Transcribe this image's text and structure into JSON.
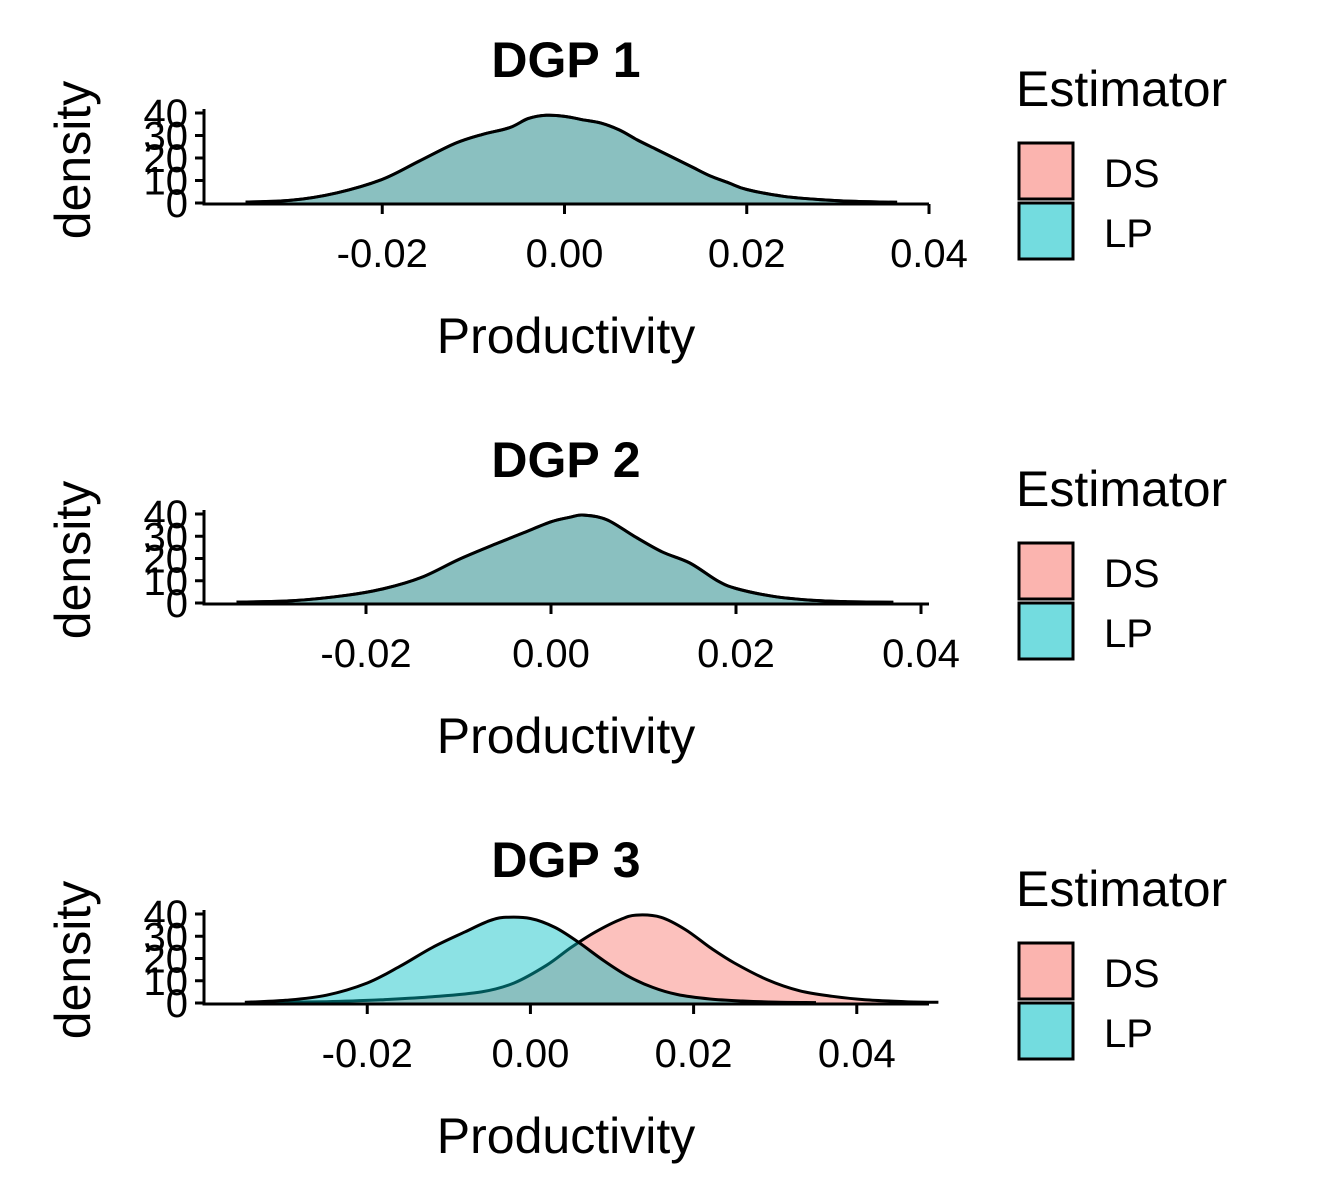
{
  "chart_data": [
    {
      "type": "area",
      "title": "DGP 1",
      "xlabel": "Productivity",
      "ylabel": "density",
      "xlim": [
        -0.04,
        0.04
      ],
      "ylim": [
        0,
        40
      ],
      "x_ticks": [
        -0.02,
        0.0,
        0.02,
        0.04
      ],
      "x_tick_labels": [
        "-0.02",
        "0.00",
        "0.02",
        "0.04"
      ],
      "y_ticks": [
        0,
        10,
        20,
        30,
        40
      ],
      "y_tick_labels": [
        "0",
        "10",
        "20",
        "30",
        "40"
      ],
      "grid": false,
      "legend": {
        "title": "Estimator",
        "position": "right",
        "entries": [
          "DS",
          "LP"
        ]
      },
      "series": [
        {
          "name": "DS",
          "color": "#F8766D",
          "x": [
            -0.035,
            -0.03,
            -0.025,
            -0.02,
            -0.016,
            -0.012,
            -0.009,
            -0.006,
            -0.004,
            -0.002,
            0.0,
            0.002,
            0.004,
            0.006,
            0.008,
            0.01,
            0.012,
            0.014,
            0.016,
            0.018,
            0.02,
            0.024,
            0.028,
            0.032,
            0.0365
          ],
          "y": [
            0.4,
            1.2,
            4.5,
            10.5,
            18.5,
            26.5,
            30.5,
            33.5,
            37.5,
            39.0,
            38.5,
            37.0,
            35.5,
            32.5,
            28.0,
            24.0,
            20.0,
            16.0,
            12.0,
            9.0,
            6.0,
            3.0,
            1.5,
            0.7,
            0.3
          ]
        },
        {
          "name": "LP",
          "color": "#00BFC4",
          "x": [
            -0.035,
            -0.03,
            -0.025,
            -0.02,
            -0.016,
            -0.012,
            -0.009,
            -0.006,
            -0.004,
            -0.002,
            0.0,
            0.002,
            0.004,
            0.006,
            0.008,
            0.01,
            0.012,
            0.014,
            0.016,
            0.018,
            0.02,
            0.024,
            0.028,
            0.032,
            0.0365
          ],
          "y": [
            0.4,
            1.2,
            4.5,
            10.5,
            18.5,
            26.5,
            30.5,
            33.5,
            37.5,
            39.0,
            38.5,
            37.0,
            35.5,
            32.5,
            28.0,
            24.0,
            20.0,
            16.0,
            12.0,
            9.0,
            6.0,
            3.0,
            1.5,
            0.7,
            0.3
          ]
        }
      ]
    },
    {
      "type": "area",
      "title": "DGP 2",
      "xlabel": "Productivity",
      "ylabel": "density",
      "xlim": [
        -0.04,
        0.04
      ],
      "ylim": [
        0,
        40
      ],
      "x_ticks": [
        -0.02,
        0.0,
        0.02,
        0.04
      ],
      "x_tick_labels": [
        "-0.02",
        "0.00",
        "0.02",
        "0.04"
      ],
      "y_ticks": [
        0,
        10,
        20,
        30,
        40
      ],
      "y_tick_labels": [
        "0",
        "10",
        "20",
        "30",
        "40"
      ],
      "grid": false,
      "legend": {
        "title": "Estimator",
        "position": "right",
        "entries": [
          "DS",
          "LP"
        ]
      },
      "series": [
        {
          "name": "DS",
          "color": "#F8766D",
          "x": [
            -0.034,
            -0.028,
            -0.022,
            -0.018,
            -0.014,
            -0.01,
            -0.006,
            -0.003,
            0.0,
            0.002,
            0.0035,
            0.006,
            0.009,
            0.012,
            0.015,
            0.018,
            0.02,
            0.024,
            0.028,
            0.032,
            0.037
          ],
          "y": [
            0.4,
            1.0,
            3.5,
            6.5,
            11.5,
            19.5,
            26.5,
            31.5,
            36.5,
            38.5,
            39.5,
            37.5,
            30.0,
            23.0,
            18.0,
            10.0,
            6.5,
            3.0,
            1.3,
            0.6,
            0.3
          ]
        },
        {
          "name": "LP",
          "color": "#00BFC4",
          "x": [
            -0.034,
            -0.028,
            -0.022,
            -0.018,
            -0.014,
            -0.01,
            -0.006,
            -0.003,
            0.0,
            0.002,
            0.0035,
            0.006,
            0.009,
            0.012,
            0.015,
            0.018,
            0.02,
            0.024,
            0.028,
            0.032,
            0.037
          ],
          "y": [
            0.4,
            1.0,
            3.5,
            6.5,
            11.5,
            19.5,
            26.5,
            31.5,
            36.5,
            38.5,
            39.5,
            37.5,
            30.0,
            23.0,
            18.0,
            10.0,
            6.5,
            3.0,
            1.3,
            0.6,
            0.3
          ]
        }
      ]
    },
    {
      "type": "area",
      "title": "DGP 3",
      "xlabel": "Productivity",
      "ylabel": "density",
      "xlim": [
        -0.0405,
        0.054
      ],
      "ylim": [
        0,
        40
      ],
      "x_ticks": [
        -0.02,
        0.0,
        0.02,
        0.04
      ],
      "x_tick_labels": [
        "-0.02",
        "0.00",
        "0.02",
        "0.04"
      ],
      "y_ticks": [
        0,
        10,
        20,
        30,
        40
      ],
      "y_tick_labels": [
        "0",
        "10",
        "20",
        "30",
        "40"
      ],
      "grid": false,
      "legend": {
        "title": "Estimator",
        "position": "right",
        "entries": [
          "DS",
          "LP"
        ]
      },
      "series": [
        {
          "name": "DS",
          "color": "#F8766D",
          "x": [
            -0.035,
            -0.025,
            -0.018,
            -0.012,
            -0.006,
            -0.002,
            0.002,
            0.005,
            0.008,
            0.011,
            0.013,
            0.016,
            0.019,
            0.022,
            0.025,
            0.029,
            0.033,
            0.037,
            0.041,
            0.046,
            0.05
          ],
          "y": [
            0.2,
            0.6,
            1.5,
            2.8,
            5.0,
            9.0,
            17.0,
            25.0,
            32.0,
            37.5,
            39.5,
            38.5,
            33.0,
            25.0,
            18.0,
            10.5,
            5.5,
            3.0,
            1.5,
            0.6,
            0.3
          ]
        },
        {
          "name": "LP",
          "color": "#00BFC4",
          "x": [
            -0.035,
            -0.03,
            -0.025,
            -0.02,
            -0.016,
            -0.012,
            -0.008,
            -0.005,
            -0.003,
            0.0,
            0.003,
            0.006,
            0.009,
            0.012,
            0.015,
            0.018,
            0.022,
            0.026,
            0.03,
            0.035
          ],
          "y": [
            0.3,
            1.2,
            3.5,
            9.0,
            16.5,
            25.0,
            32.0,
            37.0,
            38.5,
            38.0,
            34.0,
            27.0,
            19.0,
            12.0,
            7.0,
            3.8,
            1.8,
            0.9,
            0.4,
            0.2
          ]
        }
      ]
    }
  ]
}
